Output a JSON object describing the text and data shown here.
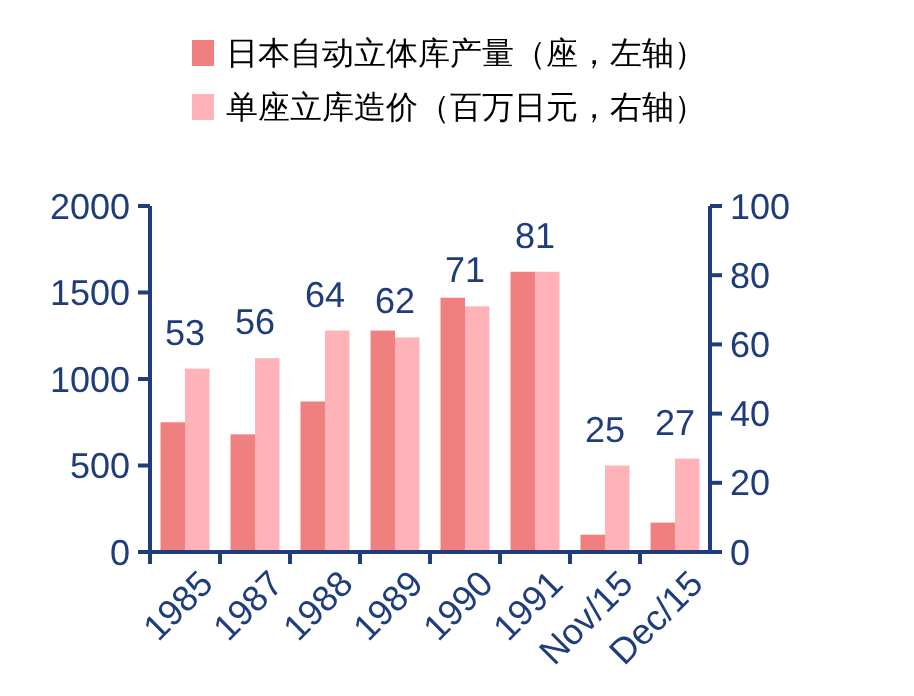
{
  "chart_data": {
    "type": "bar",
    "categories": [
      "1985",
      "1987",
      "1988",
      "1989",
      "1990",
      "1991",
      "Nov/15",
      "Dec/15"
    ],
    "series": [
      {
        "name": "日本自动立体库产量（座，左轴）",
        "color": "#f08080",
        "values": [
          750,
          680,
          870,
          1280,
          1470,
          1620,
          100,
          170
        ]
      },
      {
        "name": "单座立库造价（百万日元，右轴）",
        "color": "#ffb3b8",
        "axis": "y2",
        "values": [
          53,
          56,
          64,
          62,
          71,
          81,
          25,
          27
        ],
        "value_labels": [
          "53",
          "56",
          "64",
          "62",
          "71",
          "81",
          "25",
          "27"
        ]
      }
    ],
    "ylim": [
      0,
      2000
    ],
    "yticks": [
      0,
      500,
      1000,
      1500,
      2000
    ],
    "y2lim": [
      0,
      100
    ],
    "y2ticks": [
      0,
      20,
      40,
      60,
      80,
      100
    ],
    "legend": "top",
    "grid": false
  }
}
